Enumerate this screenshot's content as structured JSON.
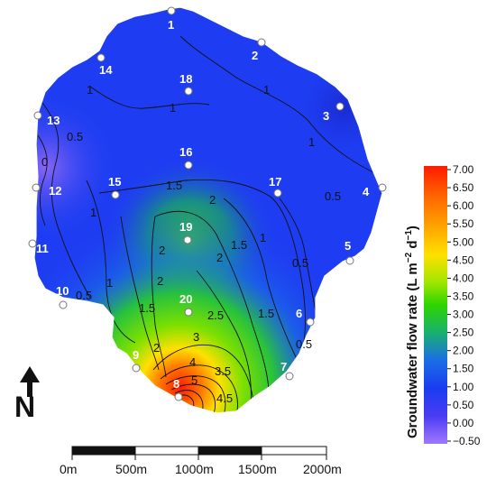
{
  "sites": [
    {
      "id": "1"
    },
    {
      "id": "2"
    },
    {
      "id": "3"
    },
    {
      "id": "4"
    },
    {
      "id": "5"
    },
    {
      "id": "6"
    },
    {
      "id": "7"
    },
    {
      "id": "8"
    },
    {
      "id": "9"
    },
    {
      "id": "10"
    },
    {
      "id": "11"
    },
    {
      "id": "12"
    },
    {
      "id": "13"
    },
    {
      "id": "14"
    },
    {
      "id": "15"
    },
    {
      "id": "16"
    },
    {
      "id": "17"
    },
    {
      "id": "18"
    },
    {
      "id": "19"
    },
    {
      "id": "20"
    }
  ],
  "contour_labels": [
    "1",
    "0.5",
    "1.5",
    "2",
    "2.5",
    "3",
    "3.5",
    "4",
    "4.5",
    "5",
    "0"
  ],
  "colorbar": {
    "title_main": "Groundwater flow rate (L m",
    "title_sup1": "−2",
    "title_mid": " d",
    "title_sup2": "−1",
    "title_end": ")",
    "ticks": [
      "7.00",
      "6.50",
      "6.00",
      "5.50",
      "5.00",
      "4.50",
      "4.00",
      "3.50",
      "3.00",
      "2.50",
      "2.00",
      "1.50",
      "1.00",
      "0.50",
      "0.00",
      "−0.50"
    ],
    "colors": [
      "#ff1a00",
      "#ff5a00",
      "#ff9a00",
      "#ffd200",
      "#e6f000",
      "#9fe600",
      "#4cd400",
      "#19c040",
      "#1a7de0",
      "#1a3cf0",
      "#3a30f0",
      "#9a70ff"
    ]
  },
  "scale_bar": {
    "labels": [
      "0m",
      "500m",
      "1000m",
      "1500m",
      "2000m"
    ]
  },
  "north_arrow": {
    "label": "N"
  },
  "palette": {
    "land": "#1e3df2",
    "low": "#7a5cf0",
    "high": "#ff2a00"
  }
}
